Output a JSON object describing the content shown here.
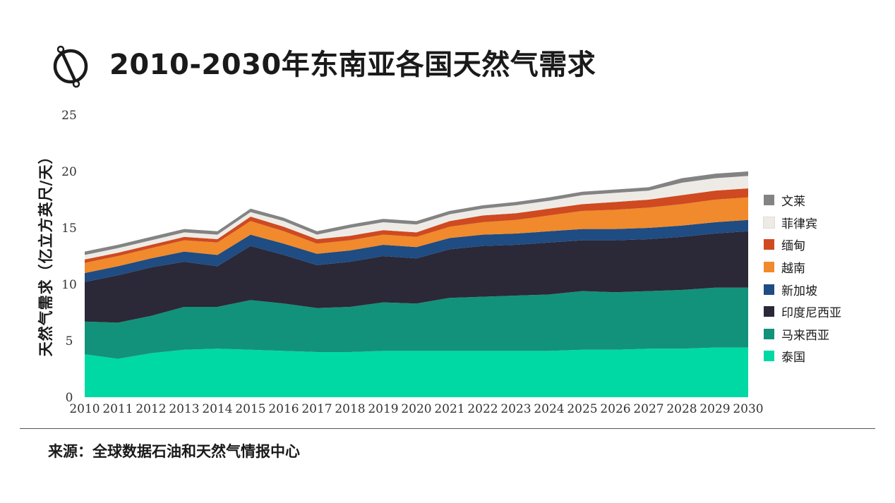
{
  "title": "2010-2030年东南亚各国天然气需求",
  "logo_icon": "compass-slash-logo-icon",
  "source": "来源：全球数据石油和天然气情报中心",
  "chart_data": {
    "type": "area",
    "stacked": true,
    "title": "2010-2030年东南亚各国天然气需求",
    "ylabel": "天然气需求（亿立方英尺/天）",
    "xlabel": "",
    "ylim": [
      0,
      25
    ],
    "yticks": [
      0,
      5,
      10,
      15,
      20,
      25
    ],
    "x": [
      "2010",
      "2011",
      "2012",
      "2013",
      "2014",
      "2015",
      "2016",
      "2017",
      "2018",
      "2019",
      "2020",
      "2021",
      "2022",
      "2023",
      "2024",
      "2025",
      "2026",
      "2027",
      "2028",
      "2029",
      "2030"
    ],
    "grid": false,
    "legend": "right",
    "series": [
      {
        "name": "泰国",
        "color": "#00d9a3",
        "values": [
          3.8,
          3.4,
          3.9,
          4.2,
          4.3,
          4.2,
          4.1,
          4.0,
          4.0,
          4.1,
          4.1,
          4.1,
          4.1,
          4.1,
          4.1,
          4.2,
          4.2,
          4.3,
          4.3,
          4.4,
          4.4
        ]
      },
      {
        "name": "马来西亚",
        "color": "#12927a",
        "values": [
          2.9,
          3.2,
          3.3,
          3.8,
          3.7,
          4.4,
          4.2,
          3.9,
          4.0,
          4.3,
          4.2,
          4.7,
          4.8,
          4.9,
          5.0,
          5.2,
          5.1,
          5.1,
          5.2,
          5.3,
          5.3
        ]
      },
      {
        "name": "印度尼西亚",
        "color": "#2b2838",
        "values": [
          3.5,
          4.2,
          4.3,
          4.0,
          3.6,
          4.8,
          4.3,
          3.8,
          4.0,
          4.1,
          4.0,
          4.3,
          4.5,
          4.5,
          4.6,
          4.5,
          4.6,
          4.6,
          4.7,
          4.8,
          5.0
        ]
      },
      {
        "name": "新加坡",
        "color": "#1f4c82",
        "values": [
          0.8,
          0.8,
          0.8,
          0.9,
          1.0,
          1.0,
          1.0,
          1.0,
          1.0,
          1.0,
          1.0,
          1.0,
          1.0,
          1.0,
          1.0,
          1.0,
          1.0,
          1.0,
          1.0,
          1.0,
          1.0
        ]
      },
      {
        "name": "越南",
        "color": "#f08a2c",
        "values": [
          0.9,
          0.9,
          0.9,
          1.0,
          1.1,
          1.2,
          1.1,
          0.9,
          0.9,
          0.9,
          0.9,
          1.0,
          1.1,
          1.2,
          1.4,
          1.6,
          1.7,
          1.8,
          1.9,
          2.0,
          2.0
        ]
      },
      {
        "name": "缅甸",
        "color": "#cf4a20",
        "values": [
          0.3,
          0.3,
          0.3,
          0.3,
          0.3,
          0.4,
          0.4,
          0.4,
          0.4,
          0.4,
          0.4,
          0.5,
          0.6,
          0.6,
          0.6,
          0.6,
          0.7,
          0.7,
          0.8,
          0.8,
          0.8
        ]
      },
      {
        "name": "菲律宾",
        "color": "#eeebe6",
        "values": [
          0.4,
          0.4,
          0.4,
          0.4,
          0.4,
          0.4,
          0.5,
          0.4,
          0.7,
          0.7,
          0.7,
          0.6,
          0.6,
          0.7,
          0.7,
          0.8,
          0.8,
          0.8,
          1.1,
          1.1,
          1.1
        ]
      },
      {
        "name": "文莱",
        "color": "#838383",
        "values": [
          0.3,
          0.3,
          0.3,
          0.3,
          0.3,
          0.3,
          0.3,
          0.3,
          0.3,
          0.3,
          0.3,
          0.3,
          0.3,
          0.3,
          0.3,
          0.3,
          0.3,
          0.3,
          0.4,
          0.4,
          0.4
        ]
      }
    ]
  }
}
